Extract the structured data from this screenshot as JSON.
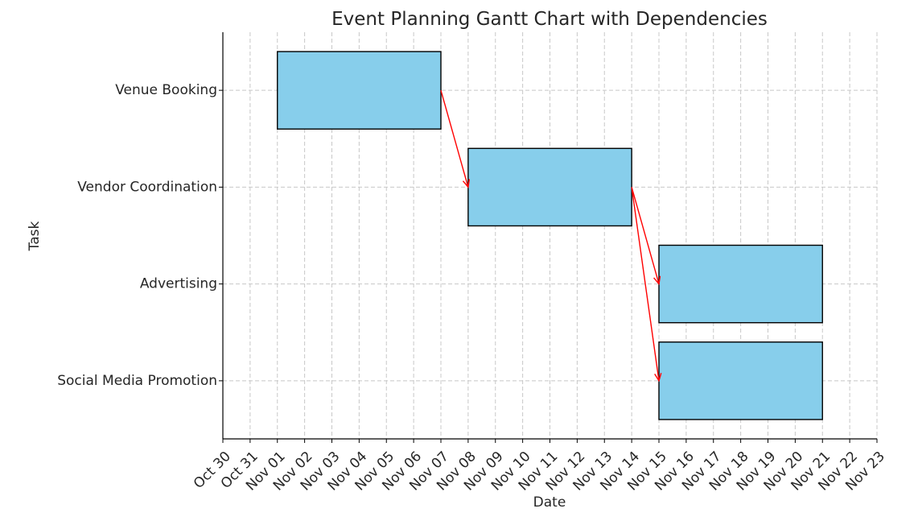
{
  "chart_data": {
    "type": "gantt",
    "title": "Event Planning Gantt Chart with Dependencies",
    "xlabel": "Date",
    "ylabel": "Task",
    "xlim": [
      "2023-10-30",
      "2023-11-23"
    ],
    "x_tick_labels": [
      "Oct 30",
      "Oct 31",
      "Nov 01",
      "Nov 02",
      "Nov 03",
      "Nov 04",
      "Nov 05",
      "Nov 06",
      "Nov 07",
      "Nov 08",
      "Nov 09",
      "Nov 10",
      "Nov 11",
      "Nov 12",
      "Nov 13",
      "Nov 14",
      "Nov 15",
      "Nov 16",
      "Nov 17",
      "Nov 18",
      "Nov 19",
      "Nov 20",
      "Nov 21",
      "Nov 22",
      "Nov 23"
    ],
    "grid": true,
    "bar_color": "#87CEEB",
    "arrow_color": "#FF0000",
    "tasks": [
      {
        "name": "Venue Booking",
        "start": "2023-11-01",
        "end": "2023-11-07"
      },
      {
        "name": "Vendor Coordination",
        "start": "2023-11-08",
        "end": "2023-11-14"
      },
      {
        "name": "Advertising",
        "start": "2023-11-15",
        "end": "2023-11-21"
      },
      {
        "name": "Social Media Promotion",
        "start": "2023-11-15",
        "end": "2023-11-21"
      }
    ],
    "dependencies": [
      {
        "from": "Venue Booking",
        "to": "Vendor Coordination"
      },
      {
        "from": "Vendor Coordination",
        "to": "Advertising"
      },
      {
        "from": "Vendor Coordination",
        "to": "Social Media Promotion"
      }
    ]
  }
}
